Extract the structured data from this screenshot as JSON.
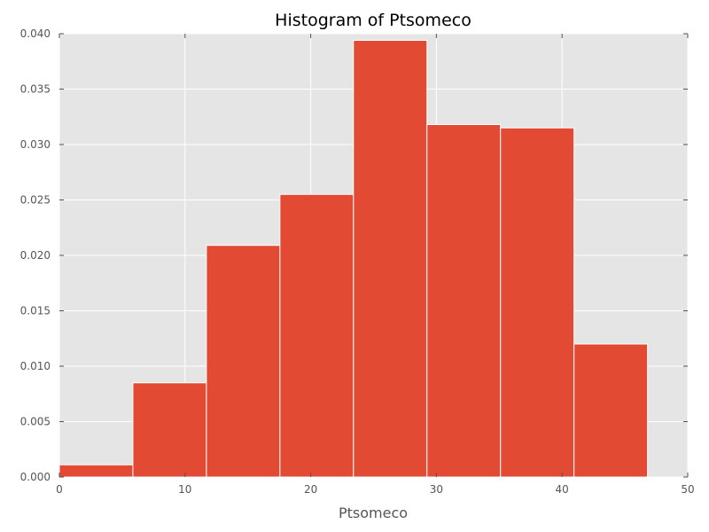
{
  "chart_data": {
    "type": "bar",
    "title": "Histogram of Ptsomeco",
    "xlabel": "Ptsomeco",
    "ylabel": "",
    "xlim": [
      0,
      50
    ],
    "ylim": [
      0,
      0.04
    ],
    "grid": true,
    "legend": "none",
    "bins": [
      {
        "start": 0.0,
        "end": 5.85,
        "value": 0.0011
      },
      {
        "start": 5.85,
        "end": 11.7,
        "value": 0.0085
      },
      {
        "start": 11.7,
        "end": 17.55,
        "value": 0.0209
      },
      {
        "start": 17.55,
        "end": 23.4,
        "value": 0.0255
      },
      {
        "start": 23.4,
        "end": 29.25,
        "value": 0.0394
      },
      {
        "start": 29.25,
        "end": 35.1,
        "value": 0.0318
      },
      {
        "start": 35.1,
        "end": 40.95,
        "value": 0.0315
      },
      {
        "start": 40.95,
        "end": 46.8,
        "value": 0.012
      }
    ],
    "x_ticks": [
      "0",
      "10",
      "20",
      "30",
      "40",
      "50"
    ],
    "y_ticks": [
      "0.000",
      "0.005",
      "0.010",
      "0.015",
      "0.020",
      "0.025",
      "0.030",
      "0.035",
      "0.040"
    ],
    "colors": {
      "bar": "#E24A33",
      "plot_bg": "#E5E5E5",
      "grid": "#FFFFFF",
      "text": "#555555"
    }
  }
}
